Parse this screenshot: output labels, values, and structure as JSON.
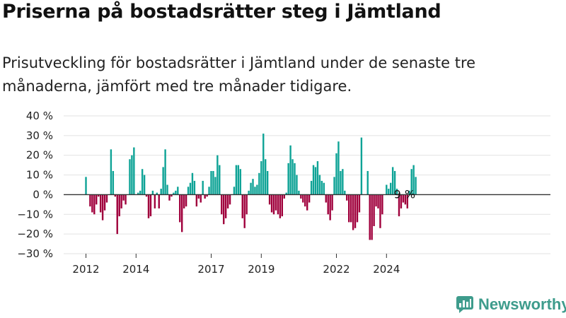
{
  "title": "Priserna på bostadsrätter steg i Jämtland",
  "subtitle": "Prisutveckling för bostadsrätter i Jämtland under de senaste tre månaderna, jämfört med tre månader tidigare.",
  "brand": "Newsworthy",
  "colors": {
    "positive": "#0ea396",
    "negative": "#a0003c",
    "brand": "#3e9c8c"
  },
  "chart_data": {
    "type": "bar",
    "ylim": [
      -30,
      40
    ],
    "y_ticks": [
      40,
      30,
      20,
      10,
      0,
      -10,
      -20,
      -30
    ],
    "y_tick_labels": [
      "40 %",
      "30 %",
      "20 %",
      "10 %",
      "0 %",
      "−10 %",
      "−20 %",
      "−30 %"
    ],
    "x_tick_labels": [
      "2012",
      "2014",
      "2017",
      "2019",
      "2022",
      "2024"
    ],
    "x_tick_index": [
      0,
      24,
      60,
      84,
      120,
      144
    ],
    "x_label": "",
    "y_label": "",
    "annotation": {
      "text": "9 %",
      "index": 153
    },
    "values": [
      9,
      0,
      -6,
      -9,
      -10,
      -5,
      -1,
      -9,
      -13,
      -8,
      -4,
      0,
      23,
      12,
      -1,
      -20,
      -11,
      -7,
      -3,
      -5,
      0,
      18,
      20,
      24,
      0,
      1,
      2,
      13,
      10,
      -1,
      -12,
      -11,
      2,
      -7,
      1,
      -7,
      3,
      14,
      23,
      5,
      -3,
      -1,
      1,
      2,
      4,
      -14,
      -19,
      -7,
      -6,
      4,
      6,
      11,
      7,
      -6,
      -2,
      -4,
      7,
      -2,
      -1,
      4,
      12,
      12,
      9,
      20,
      15,
      -10,
      -15,
      -12,
      -7,
      -5,
      0,
      4,
      15,
      15,
      13,
      -12,
      -17,
      -10,
      2,
      6,
      8,
      4,
      5,
      11,
      17,
      31,
      18,
      12,
      -5,
      -9,
      -10,
      -8,
      -10,
      -12,
      -11,
      -2,
      1,
      16,
      25,
      18,
      16,
      10,
      2,
      -2,
      -4,
      -6,
      -8,
      -4,
      7,
      15,
      14,
      17,
      10,
      7,
      6,
      -4,
      -10,
      -13,
      -8,
      9,
      21,
      27,
      12,
      13,
      2,
      -3,
      -14,
      -14,
      -18,
      -17,
      -14,
      -9,
      29,
      0,
      0,
      12,
      -23,
      -23,
      -16,
      -6,
      -7,
      -17,
      -10,
      0,
      5,
      3,
      6,
      14,
      12,
      3,
      -11,
      -7,
      -4,
      -5,
      -7,
      2,
      13,
      15,
      9
    ]
  }
}
